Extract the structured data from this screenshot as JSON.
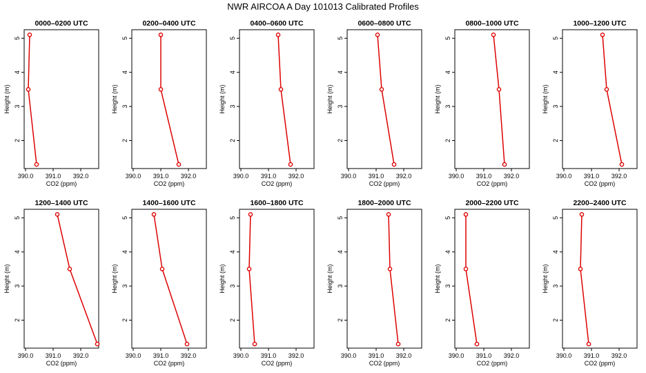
{
  "chart_data": {
    "type": "line",
    "title": "NWR AIRCOA A  Day 101013  Calibrated Profiles",
    "xlabel": "CO2 (ppm)",
    "ylabel": "Height (m)",
    "xlim": [
      389.95,
      392.65
    ],
    "ylim": [
      1.18,
      5.25
    ],
    "x_ticks": [
      390.0,
      391.0,
      392.0
    ],
    "x_tick_labels": [
      "390.0",
      "391.0",
      "392.0"
    ],
    "y_ticks": [
      2,
      3,
      4,
      5
    ],
    "y_tick_labels": [
      "2",
      "3",
      "4",
      "5"
    ],
    "line_color": "#dd0000",
    "panels": [
      {
        "title": "0000–0200 UTC",
        "points": [
          {
            "x": 390.4,
            "y": 1.3
          },
          {
            "x": 390.1,
            "y": 3.5
          },
          {
            "x": 390.15,
            "y": 5.1
          }
        ]
      },
      {
        "title": "0200–0400 UTC",
        "points": [
          {
            "x": 391.65,
            "y": 1.3
          },
          {
            "x": 391.0,
            "y": 3.5
          },
          {
            "x": 391.0,
            "y": 5.1
          }
        ]
      },
      {
        "title": "0400–0600 UTC",
        "points": [
          {
            "x": 391.8,
            "y": 1.3
          },
          {
            "x": 391.45,
            "y": 3.5
          },
          {
            "x": 391.35,
            "y": 5.1
          }
        ]
      },
      {
        "title": "0600–0800 UTC",
        "points": [
          {
            "x": 391.65,
            "y": 1.3
          },
          {
            "x": 391.2,
            "y": 3.5
          },
          {
            "x": 391.05,
            "y": 5.1
          }
        ]
      },
      {
        "title": "0800–1000 UTC",
        "points": [
          {
            "x": 391.75,
            "y": 1.3
          },
          {
            "x": 391.55,
            "y": 3.5
          },
          {
            "x": 391.35,
            "y": 5.1
          }
        ]
      },
      {
        "title": "1000–1200 UTC",
        "points": [
          {
            "x": 392.1,
            "y": 1.3
          },
          {
            "x": 391.55,
            "y": 3.5
          },
          {
            "x": 391.4,
            "y": 5.1
          }
        ]
      },
      {
        "title": "1200–1400 UTC",
        "points": [
          {
            "x": 392.6,
            "y": 1.3
          },
          {
            "x": 391.6,
            "y": 3.5
          },
          {
            "x": 391.15,
            "y": 5.1
          }
        ]
      },
      {
        "title": "1400–1600 UTC",
        "points": [
          {
            "x": 391.95,
            "y": 1.3
          },
          {
            "x": 391.05,
            "y": 3.5
          },
          {
            "x": 390.75,
            "y": 5.1
          }
        ]
      },
      {
        "title": "1600–1800 UTC",
        "points": [
          {
            "x": 390.5,
            "y": 1.3
          },
          {
            "x": 390.3,
            "y": 3.5
          },
          {
            "x": 390.35,
            "y": 5.1
          }
        ]
      },
      {
        "title": "1800–2000 UTC",
        "points": [
          {
            "x": 391.8,
            "y": 1.3
          },
          {
            "x": 391.5,
            "y": 3.5
          },
          {
            "x": 391.45,
            "y": 5.1
          }
        ]
      },
      {
        "title": "2000–2200 UTC",
        "points": [
          {
            "x": 390.75,
            "y": 1.3
          },
          {
            "x": 390.35,
            "y": 3.5
          },
          {
            "x": 390.35,
            "y": 5.1
          }
        ]
      },
      {
        "title": "2200–2400 UTC",
        "points": [
          {
            "x": 390.9,
            "y": 1.3
          },
          {
            "x": 390.6,
            "y": 3.5
          },
          {
            "x": 390.65,
            "y": 5.1
          }
        ]
      }
    ]
  }
}
